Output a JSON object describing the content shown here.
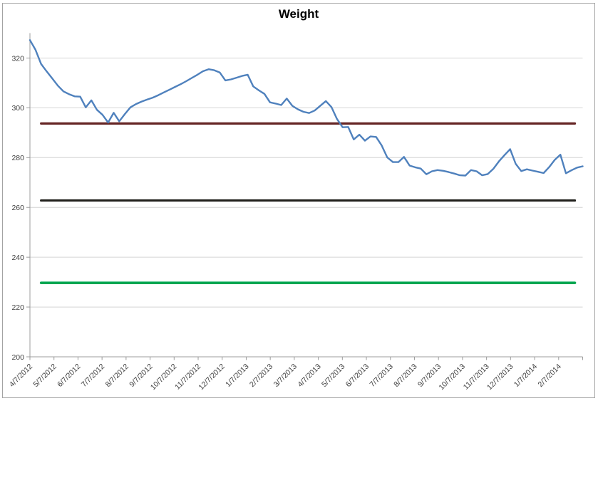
{
  "chart_data": {
    "type": "line",
    "title": "Weight",
    "legend": "none",
    "grid": true,
    "x_tick_labels": [
      "4/7/2012",
      "5/7/2012",
      "6/7/2012",
      "7/7/2012",
      "8/7/2012",
      "9/7/2012",
      "10/7/2012",
      "11/7/2012",
      "12/7/2012",
      "1/7/2013",
      "2/7/2013",
      "3/7/2013",
      "4/7/2013",
      "5/7/2013",
      "6/7/2013",
      "7/7/2013",
      "8/7/2013",
      "9/7/2013",
      "10/7/2013",
      "11/7/2013",
      "12/7/2013",
      "1/7/2014",
      "2/7/2014"
    ],
    "y_axis": {
      "min": 200,
      "max": 330,
      "tick_step": 20,
      "tick_labels": [
        "200",
        "220",
        "240",
        "260",
        "280",
        "300",
        "320"
      ]
    },
    "series": [
      {
        "name": "Weight",
        "cadence": "weekly",
        "color": "#4f81bd",
        "stroke_width": 2.4,
        "values": [
          327.2,
          323.3,
          317.6,
          314.6,
          311.8,
          308.9,
          306.6,
          305.5,
          304.6,
          304.5,
          300.2,
          303.0,
          299.2,
          297.2,
          294.1,
          298.0,
          294.6,
          297.5,
          300.2,
          301.5,
          302.5,
          303.3,
          304.1,
          305.1,
          306.2,
          307.3,
          308.4,
          309.5,
          310.7,
          312.0,
          313.3,
          314.7,
          315.5,
          315.1,
          314.2,
          311.0,
          311.4,
          312.1,
          312.8,
          313.3,
          308.6,
          307.0,
          305.6,
          302.2,
          301.7,
          301.1,
          303.7,
          300.8,
          299.4,
          298.4,
          297.9,
          298.9,
          300.8,
          302.7,
          300.3,
          295.5,
          292.2,
          292.3,
          287.3,
          289.2,
          286.8,
          288.5,
          288.3,
          284.9,
          280.1,
          278.2,
          278.2,
          280.3,
          276.8,
          276.1,
          275.6,
          273.3,
          274.5,
          275.0,
          274.7,
          274.2,
          273.6,
          272.9,
          272.8,
          275.0,
          274.5,
          272.9,
          273.4,
          275.5,
          278.5,
          281.0,
          283.4,
          277.5,
          274.6,
          275.3,
          274.8,
          274.3,
          273.8,
          276.2,
          279.1,
          281.2,
          273.7,
          274.9,
          276.0,
          276.5
        ]
      }
    ],
    "reference_lines": [
      {
        "color_name": "dark-red",
        "color": "#652524",
        "value": 293.7,
        "stroke_width": 3.2
      },
      {
        "color_name": "black",
        "color": "#21201c",
        "value": 262.8,
        "stroke_width": 3.2
      },
      {
        "color_name": "green",
        "color": "#00a651",
        "value": 229.7,
        "stroke_width": 3.6
      }
    ],
    "colors": {
      "gridline": "#d4d4d4",
      "axis": "#9c9c9c",
      "tick_label": "#404040",
      "background": "#ffffff",
      "chart_border": "#a3a3a3"
    }
  }
}
